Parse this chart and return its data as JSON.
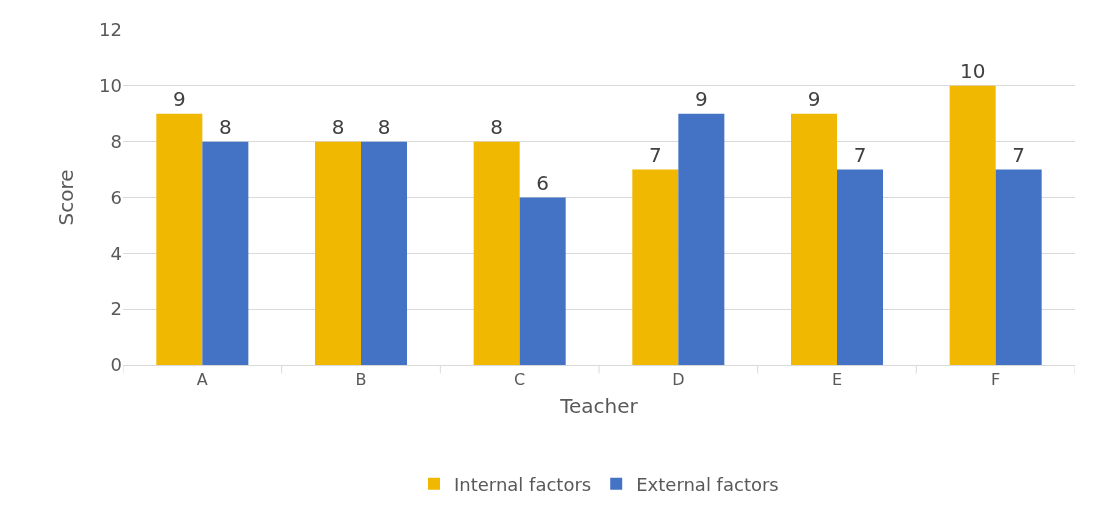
{
  "chart_data": {
    "type": "bar",
    "xlabel": "Teacher",
    "ylabel": "Score",
    "categories": [
      "A",
      "B",
      "C",
      "D",
      "E",
      "F"
    ],
    "series": [
      {
        "name": "Internal factors",
        "color": "#f0b800",
        "values": [
          9,
          8,
          8,
          7,
          9,
          10
        ]
      },
      {
        "name": "External factors",
        "color": "#4472c4",
        "values": [
          8,
          8,
          6,
          9,
          7,
          7
        ]
      }
    ],
    "ylim": [
      0,
      12
    ],
    "yticks": [
      0,
      2,
      4,
      6,
      8,
      10,
      12
    ],
    "grid": "y",
    "legend": "bottom",
    "data_labels": true
  }
}
